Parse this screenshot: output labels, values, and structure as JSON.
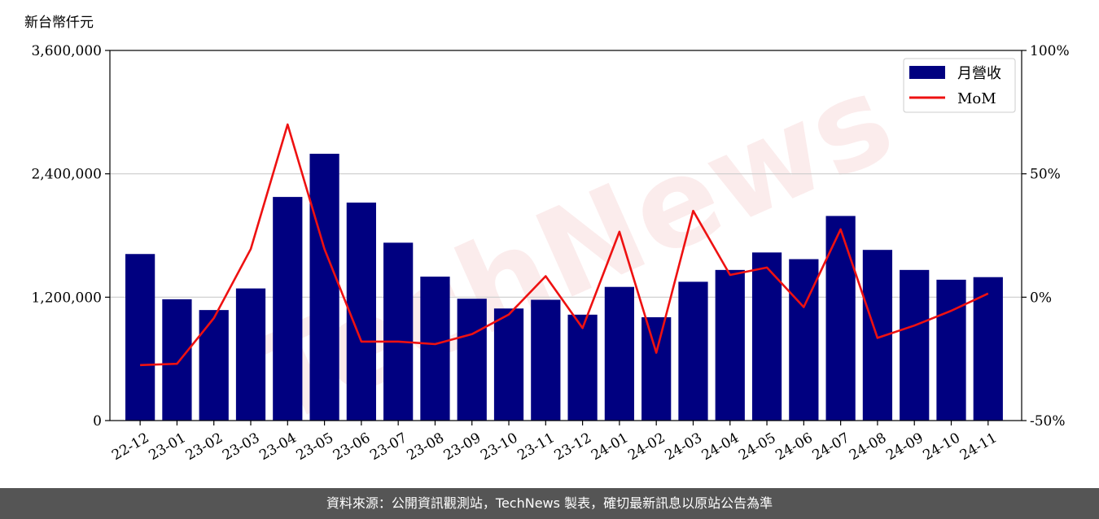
{
  "watermark": "TechNews",
  "footer": "資料來源：公開資訊觀測站，TechNews 製表，確切最新訊息以原站公告為準",
  "colors": {
    "bar": "#000080",
    "line": "#ee1111",
    "grid": "#cccccc",
    "footer_bg": "#555555"
  },
  "chart_data": {
    "type": "bar",
    "y_unit_label": "新台幣仟元",
    "categories": [
      "22-12",
      "23-01",
      "23-02",
      "23-03",
      "23-04",
      "23-05",
      "23-06",
      "23-07",
      "23-08",
      "23-09",
      "23-10",
      "23-11",
      "23-12",
      "24-01",
      "24-02",
      "24-03",
      "24-04",
      "24-05",
      "24-06",
      "24-07",
      "24-08",
      "24-09",
      "24-10",
      "24-11"
    ],
    "series": [
      {
        "name": "月營收",
        "type": "bar",
        "axis": "left",
        "values": [
          1620000,
          1180000,
          1075000,
          1285000,
          2175000,
          2595000,
          2120000,
          1730000,
          1400000,
          1185000,
          1090000,
          1175000,
          1030000,
          1300000,
          1005000,
          1350000,
          1465000,
          1635000,
          1570000,
          1990000,
          1660000,
          1465000,
          1370000,
          1395000
        ]
      },
      {
        "name": "MoM",
        "type": "line",
        "axis": "right",
        "values": [
          -27.5,
          -27,
          -8.5,
          19.5,
          70,
          19.5,
          -18,
          -18,
          -19,
          -15,
          -7,
          8.5,
          -12.5,
          26.5,
          -22.5,
          35,
          9,
          12,
          -4,
          27.5,
          -16.5,
          -11.5,
          -5.5,
          1.5
        ]
      }
    ],
    "y_left": {
      "min": 0,
      "max": 3600000,
      "ticks": [
        0,
        1200000,
        2400000,
        3600000
      ],
      "tick_labels": [
        "0",
        "1,200,000",
        "2,400,000",
        "3,600,000"
      ]
    },
    "y_right": {
      "min": -50,
      "max": 100,
      "ticks": [
        -50,
        0,
        50,
        100
      ],
      "tick_labels": [
        "-50%",
        "0%",
        "50%",
        "100%"
      ]
    },
    "grid": true,
    "legend_position": "top-right"
  }
}
